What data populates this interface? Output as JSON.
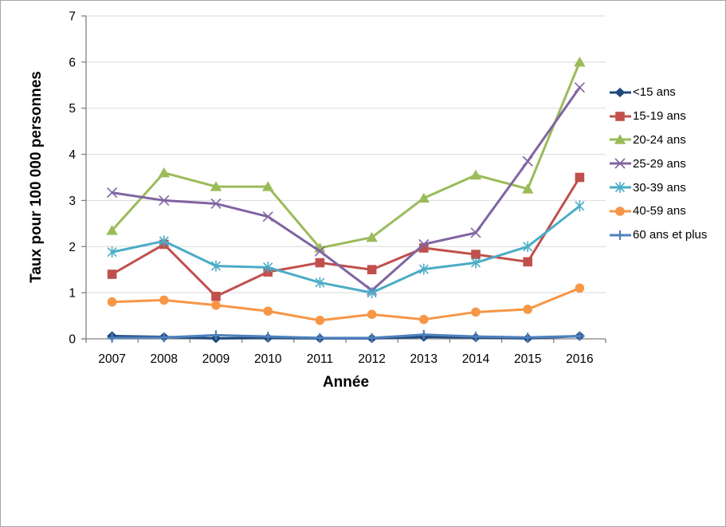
{
  "chart_data": {
    "type": "line",
    "title": "",
    "xlabel": "Année",
    "ylabel": "Taux pour 100 000 personnes",
    "ylim": [
      0,
      7
    ],
    "yticks": [
      0,
      1,
      2,
      3,
      4,
      5,
      6,
      7
    ],
    "grid": true,
    "legend_position": "right",
    "categories": [
      "2007",
      "2008",
      "2009",
      "2010",
      "2011",
      "2012",
      "2013",
      "2014",
      "2015",
      "2016"
    ],
    "series": [
      {
        "name": "<15 ans",
        "color": "#1F497D",
        "marker": "diamond",
        "values": [
          0.06,
          0.04,
          0.01,
          0.02,
          0.01,
          0.01,
          0.04,
          0.03,
          0.01,
          0.06
        ]
      },
      {
        "name": "15-19 ans",
        "color": "#C0504D",
        "marker": "square",
        "values": [
          1.4,
          2.05,
          0.92,
          1.45,
          1.65,
          1.5,
          1.97,
          1.83,
          1.67,
          3.5
        ]
      },
      {
        "name": "20-24 ans",
        "color": "#9BBB59",
        "marker": "triangle",
        "values": [
          2.35,
          3.6,
          3.3,
          3.3,
          1.97,
          2.2,
          3.05,
          3.55,
          3.25,
          6.0
        ]
      },
      {
        "name": "25-29 ans",
        "color": "#8064A2",
        "marker": "x",
        "values": [
          3.17,
          3.0,
          2.93,
          2.65,
          1.9,
          1.05,
          2.05,
          2.3,
          3.85,
          5.45
        ]
      },
      {
        "name": "30-39 ans",
        "color": "#4BACC6",
        "marker": "asterisk",
        "values": [
          1.88,
          2.12,
          1.58,
          1.55,
          1.22,
          1.0,
          1.51,
          1.65,
          2.0,
          2.88
        ]
      },
      {
        "name": "40-59 ans",
        "color": "#F79646",
        "marker": "circle",
        "values": [
          0.8,
          0.84,
          0.73,
          0.6,
          0.4,
          0.53,
          0.42,
          0.58,
          0.64,
          1.1
        ]
      },
      {
        "name": "60 ans et plus",
        "color": "#4F81BD",
        "marker": "plus",
        "values": [
          0.02,
          0.03,
          0.08,
          0.05,
          0.02,
          0.02,
          0.09,
          0.05,
          0.03,
          0.06
        ]
      }
    ]
  },
  "colors": {
    "background": "#FFFFFF",
    "frame_border": "#A6A6A6",
    "gridline": "#D9D9D9",
    "axis": "#808080",
    "text": "#000000"
  }
}
